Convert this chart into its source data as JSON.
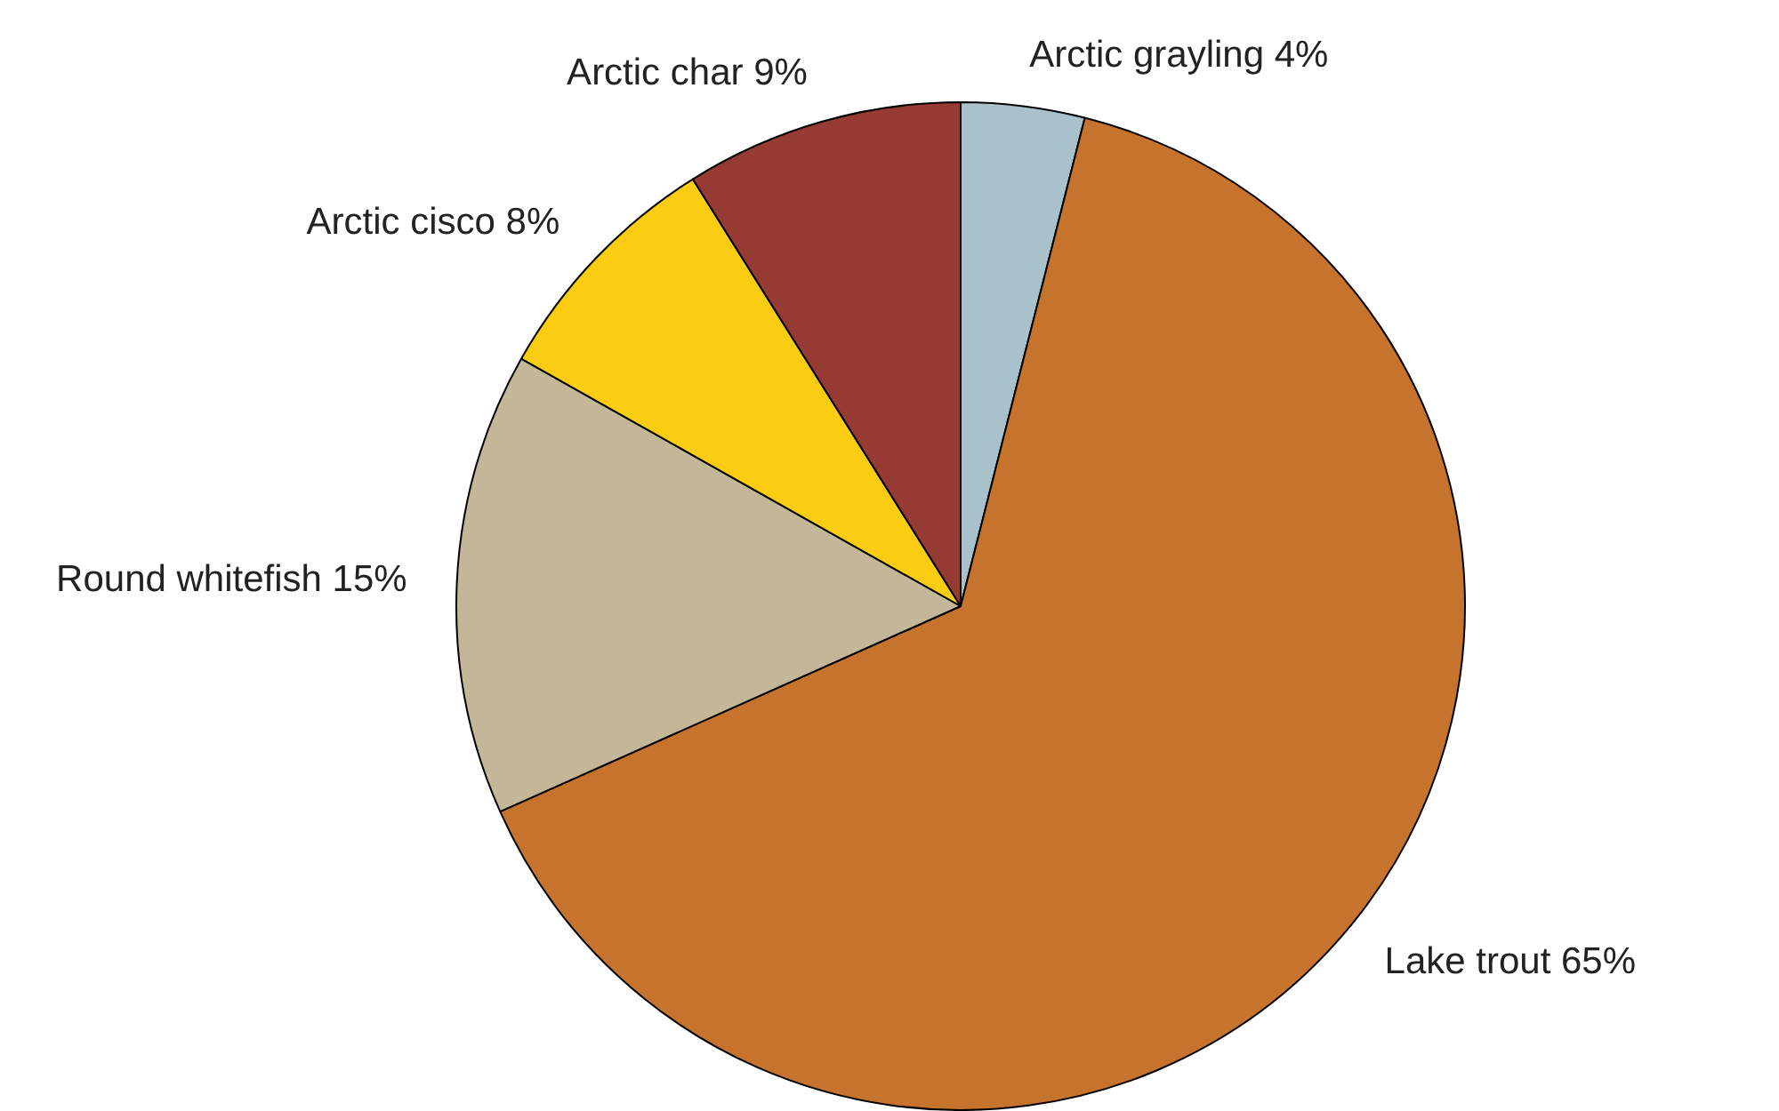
{
  "chart_data": {
    "type": "pie",
    "categories": [
      "Arctic grayling",
      "Lake trout",
      "Round whitefish",
      "Arctic cisco",
      "Arctic char"
    ],
    "values": [
      4,
      65,
      15,
      8,
      9
    ],
    "colors": [
      "#a9c1cb",
      "#c5732d",
      "#c4b699",
      "#facc12",
      "#963b34"
    ],
    "value_labels": [
      "4%",
      "65%",
      "15%",
      "8%",
      "9%"
    ],
    "legend": false
  }
}
